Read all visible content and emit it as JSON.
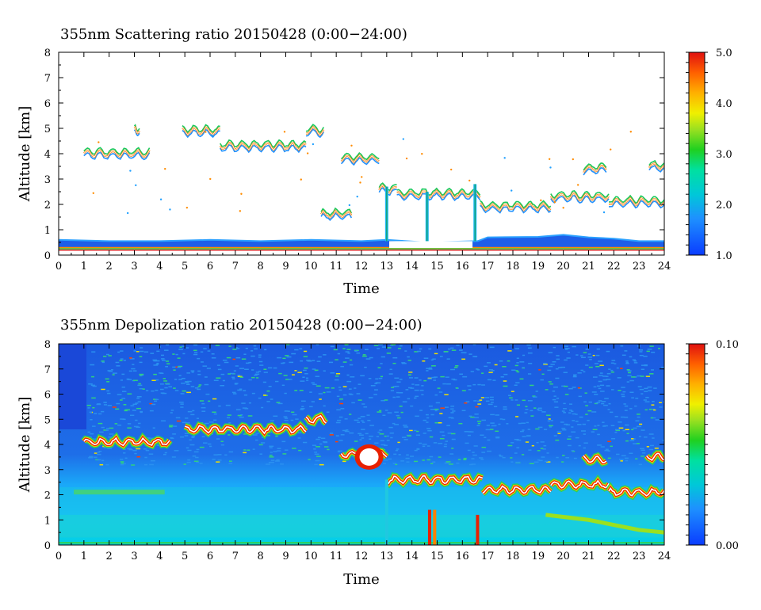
{
  "chart_data": [
    {
      "type": "heatmap",
      "title": "355nm Scattering ratio  20150428 (0:00−24:00)",
      "xlabel": "Time",
      "ylabel": "Altitude [km]",
      "xlim": [
        0,
        24
      ],
      "ylim": [
        0,
        8
      ],
      "xticks": [
        "0",
        "1",
        "2",
        "3",
        "4",
        "5",
        "6",
        "7",
        "8",
        "9",
        "10",
        "11",
        "12",
        "13",
        "14",
        "15",
        "16",
        "17",
        "18",
        "19",
        "20",
        "21",
        "22",
        "23",
        "24"
      ],
      "yticks": [
        "0",
        "1",
        "2",
        "3",
        "4",
        "5",
        "6",
        "7",
        "8"
      ],
      "colorbar": {
        "range": [
          1.0,
          5.0
        ],
        "ticks": [
          "1.0",
          "2.0",
          "3.0",
          "4.0",
          "5.0"
        ]
      },
      "boundary_layer_top_km": [
        [
          0,
          0.6
        ],
        [
          2,
          0.55
        ],
        [
          4,
          0.55
        ],
        [
          6,
          0.6
        ],
        [
          8,
          0.55
        ],
        [
          10,
          0.6
        ],
        [
          12,
          0.55
        ],
        [
          13,
          0.6
        ],
        [
          14.6,
          0.5
        ],
        [
          16.6,
          0.55
        ],
        [
          17,
          0.7
        ],
        [
          19,
          0.72
        ],
        [
          20,
          0.8
        ],
        [
          21,
          0.7
        ],
        [
          22,
          0.65
        ],
        [
          23,
          0.55
        ],
        [
          24,
          0.55
        ]
      ],
      "cloud_layers_km": [
        {
          "t0": 1.0,
          "t1": 3.6,
          "z": 4.0
        },
        {
          "t0": 3.0,
          "t1": 3.2,
          "z": 4.9
        },
        {
          "t0": 4.9,
          "t1": 6.4,
          "z": 4.9
        },
        {
          "t0": 6.4,
          "t1": 9.8,
          "z": 4.3
        },
        {
          "t0": 9.8,
          "t1": 10.5,
          "z": 4.9
        },
        {
          "t0": 11.2,
          "t1": 12.7,
          "z": 3.8
        },
        {
          "t0": 12.7,
          "t1": 13.4,
          "z": 2.6
        },
        {
          "t0": 13.4,
          "t1": 16.7,
          "z": 2.4
        },
        {
          "t0": 16.7,
          "t1": 19.5,
          "z": 1.9
        },
        {
          "t0": 19.5,
          "t1": 21.8,
          "z": 2.3
        },
        {
          "t0": 21.8,
          "t1": 24.0,
          "z": 2.1
        },
        {
          "t0": 20.8,
          "t1": 21.7,
          "z": 3.4
        },
        {
          "t0": 23.4,
          "t1": 24.0,
          "z": 3.5
        },
        {
          "t0": 10.4,
          "t1": 11.6,
          "z": 1.6
        }
      ]
    },
    {
      "type": "heatmap",
      "title": "355nm Depolization ratio  20150428 (0:00−24:00)",
      "xlabel": "Time",
      "ylabel": "Altitude [km]",
      "xlim": [
        0,
        24
      ],
      "ylim": [
        0,
        8
      ],
      "xticks": [
        "0",
        "1",
        "2",
        "3",
        "4",
        "5",
        "6",
        "7",
        "8",
        "9",
        "10",
        "11",
        "12",
        "13",
        "14",
        "15",
        "16",
        "17",
        "18",
        "19",
        "20",
        "21",
        "22",
        "23",
        "24"
      ],
      "yticks": [
        "0",
        "1",
        "2",
        "3",
        "4",
        "5",
        "6",
        "7",
        "8"
      ],
      "colorbar": {
        "range": [
          0.0,
          0.1
        ],
        "ticks": [
          "0.00",
          "0.10"
        ]
      },
      "high_depol_layers_km": [
        {
          "t0": 1.0,
          "t1": 4.4,
          "z": 4.1
        },
        {
          "t0": 5.0,
          "t1": 9.8,
          "z": 4.6
        },
        {
          "t0": 9.8,
          "t1": 10.6,
          "z": 5.0
        },
        {
          "t0": 11.2,
          "t1": 13.0,
          "z": 3.6
        },
        {
          "t0": 13.0,
          "t1": 16.8,
          "z": 2.6
        },
        {
          "t0": 16.8,
          "t1": 19.5,
          "z": 2.2
        },
        {
          "t0": 19.5,
          "t1": 21.8,
          "z": 2.4
        },
        {
          "t0": 21.8,
          "t1": 24.0,
          "z": 2.1
        },
        {
          "t0": 20.8,
          "t1": 21.7,
          "z": 3.4
        },
        {
          "t0": 23.3,
          "t1": 24.0,
          "z": 3.5
        }
      ]
    }
  ]
}
